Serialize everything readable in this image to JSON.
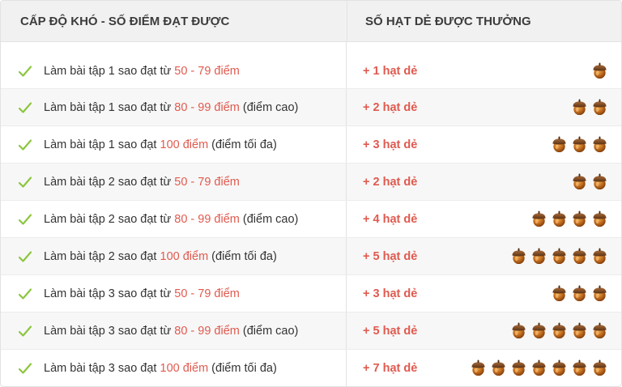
{
  "header": {
    "left": "CẤP ĐỘ KHÓ - SỐ ĐIỂM ĐẠT ĐƯỢC",
    "right": "SỐ HẠT DẺ ĐƯỢC THƯỞNG"
  },
  "icons": {
    "check": "checkmark-icon",
    "nut": "acorn-icon"
  },
  "colors": {
    "accent": "#e05a4f",
    "check": "#8cc63f"
  },
  "rows": [
    {
      "prefix": "Làm bài tập 1 sao đạt từ ",
      "score": "50 - 79 điểm",
      "suffix": "",
      "reward": "+ 1 hạt dẻ",
      "nuts": 1
    },
    {
      "prefix": "Làm bài tập 1 sao đạt từ ",
      "score": "80 - 99 điểm",
      "suffix": " (điểm cao)",
      "reward": "+ 2 hạt dẻ",
      "nuts": 2
    },
    {
      "prefix": "Làm bài tập 1 sao đạt ",
      "score": "100 điểm",
      "suffix": " (điểm tối đa)",
      "reward": "+ 3 hạt dẻ",
      "nuts": 3
    },
    {
      "prefix": "Làm bài tập 2 sao đạt từ ",
      "score": "50 - 79 điểm",
      "suffix": "",
      "reward": "+ 2 hạt dẻ",
      "nuts": 2
    },
    {
      "prefix": "Làm bài tập 2 sao đạt từ ",
      "score": "80 - 99 điểm",
      "suffix": " (điểm cao)",
      "reward": "+ 4 hạt dẻ",
      "nuts": 4
    },
    {
      "prefix": "Làm bài tập 2 sao đạt ",
      "score": "100 điểm",
      "suffix": " (điểm tối đa)",
      "reward": "+ 5 hạt dẻ",
      "nuts": 5
    },
    {
      "prefix": "Làm bài tập 3 sao đạt từ ",
      "score": "50 - 79 điểm",
      "suffix": "",
      "reward": "+ 3 hạt dẻ",
      "nuts": 3
    },
    {
      "prefix": "Làm bài tập 3 sao đạt từ ",
      "score": "80 - 99 điểm",
      "suffix": " (điểm cao)",
      "reward": "+ 5 hạt dẻ",
      "nuts": 5
    },
    {
      "prefix": "Làm bài tập 3 sao đạt ",
      "score": "100 điểm",
      "suffix": " (điểm tối đa)",
      "reward": "+ 7 hạt dẻ",
      "nuts": 7
    }
  ]
}
